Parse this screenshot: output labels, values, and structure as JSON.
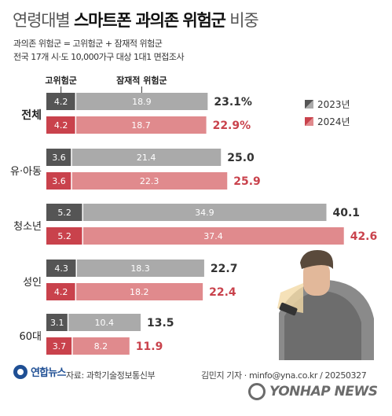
{
  "title": {
    "part1": "연령대별",
    "part2": "스마트폰 과의존",
    "part3": "위험군",
    "part4": "비중"
  },
  "subtitle_lines": [
    "과의존 위험군 = 고위험군 + 잠재적 위험군",
    "전국 17개 시·도 10,000가구 대상 1대1 면접조사"
  ],
  "footer": {
    "logo_text": "연합뉴스",
    "source": "자료: 과학기술정보통신부",
    "byline": "김민지 기자 · minfo@yna.co.kr / 20250327",
    "watermark": "YONHAP NEWS"
  },
  "colors": {
    "high_2023": "#555555",
    "potential_2023": "#aaaaaa",
    "high_2024": "#c9424c",
    "potential_2024": "#e08a8d",
    "total_2024_text": "#c9424c"
  },
  "chart_data": {
    "type": "bar",
    "orientation": "horizontal",
    "stacked": true,
    "column_headers": [
      "고위험군",
      "잠재적 위험군"
    ],
    "legend": [
      "2023년",
      "2024년"
    ],
    "categories": [
      "전체",
      "유·아동",
      "청소년",
      "성인",
      "60대"
    ],
    "series": [
      {
        "name": "2023년",
        "high": [
          4.2,
          3.6,
          5.2,
          4.3,
          3.1
        ],
        "potential": [
          18.9,
          21.4,
          34.9,
          18.3,
          10.4
        ],
        "total": [
          "23.1%",
          "25.0",
          "40.1",
          "22.7",
          "13.5"
        ]
      },
      {
        "name": "2024년",
        "high": [
          4.2,
          3.6,
          5.2,
          4.2,
          3.7
        ],
        "potential": [
          18.7,
          22.3,
          37.4,
          18.2,
          8.2
        ],
        "total": [
          "22.9%",
          "25.9",
          "42.6",
          "22.4",
          "11.9"
        ]
      }
    ]
  }
}
